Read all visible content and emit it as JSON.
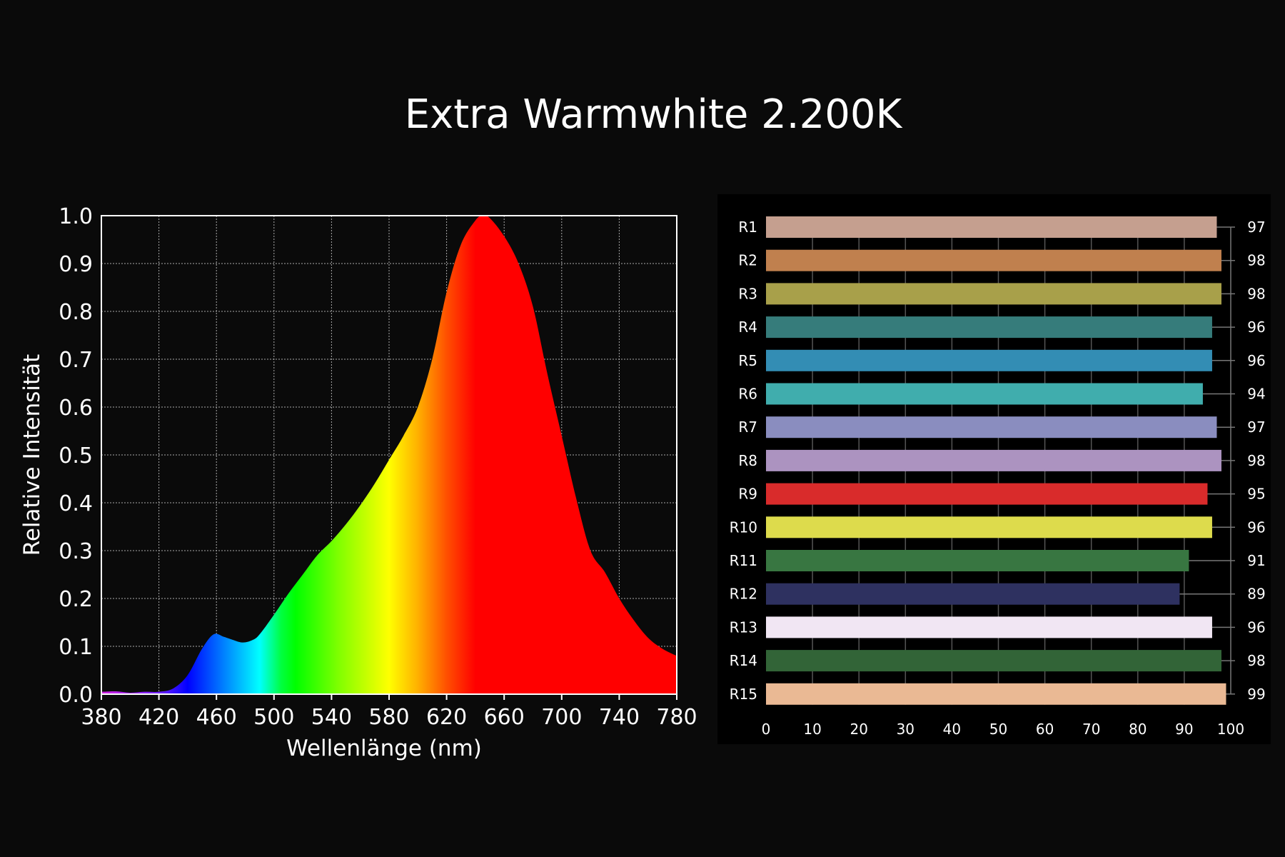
{
  "title": "Extra Warmwhite 2.200K",
  "chart_data": [
    {
      "type": "area",
      "title": "Extra Warmwhite 2.200K",
      "xlabel": "Wellenlänge (nm)",
      "ylabel": "Relative Intensität",
      "xlim": [
        380,
        780
      ],
      "ylim": [
        0,
        1.0
      ],
      "grid": true,
      "xticks": [
        380,
        420,
        460,
        500,
        540,
        580,
        620,
        660,
        700,
        740,
        780
      ],
      "yticks": [
        "0.0",
        "0.1",
        "0.2",
        "0.3",
        "0.4",
        "0.5",
        "0.6",
        "0.7",
        "0.8",
        "0.9",
        "1.0"
      ],
      "x": [
        380,
        390,
        400,
        410,
        420,
        430,
        440,
        450,
        458,
        465,
        470,
        478,
        485,
        490,
        500,
        510,
        520,
        530,
        540,
        550,
        560,
        570,
        580,
        590,
        600,
        610,
        620,
        630,
        640,
        645,
        650,
        660,
        670,
        680,
        690,
        700,
        710,
        720,
        730,
        740,
        750,
        760,
        770,
        780
      ],
      "y": [
        0.005,
        0.006,
        0.003,
        0.005,
        0.005,
        0.012,
        0.04,
        0.095,
        0.125,
        0.12,
        0.115,
        0.108,
        0.113,
        0.125,
        0.166,
        0.21,
        0.25,
        0.29,
        0.32,
        0.355,
        0.395,
        0.44,
        0.49,
        0.54,
        0.6,
        0.7,
        0.84,
        0.94,
        0.99,
        1.0,
        0.995,
        0.957,
        0.9,
        0.81,
        0.67,
        0.54,
        0.41,
        0.3,
        0.255,
        0.2,
        0.155,
        0.118,
        0.095,
        0.08
      ]
    },
    {
      "type": "bar",
      "orientation": "horizontal",
      "categories": [
        "R1",
        "R2",
        "R3",
        "R4",
        "R5",
        "R6",
        "R7",
        "R8",
        "R9",
        "R10",
        "R11",
        "R12",
        "R13",
        "R14",
        "R15"
      ],
      "values": [
        97,
        98,
        98,
        96,
        96,
        94,
        97,
        98,
        95,
        96,
        91,
        89,
        96,
        98,
        99
      ],
      "colors": [
        "#c59f8f",
        "#c0804e",
        "#a8a04a",
        "#367c7b",
        "#338db4",
        "#40adad",
        "#8a8dbf",
        "#ac93c0",
        "#d92b2b",
        "#dddb4c",
        "#387641",
        "#2e3160",
        "#f1e6f3",
        "#326437",
        "#eab994"
      ],
      "xlim": [
        0,
        100
      ],
      "xticks": [
        "0",
        "10",
        "20",
        "30",
        "40",
        "50",
        "60",
        "70",
        "80",
        "90",
        "100"
      ],
      "grid": true
    }
  ]
}
